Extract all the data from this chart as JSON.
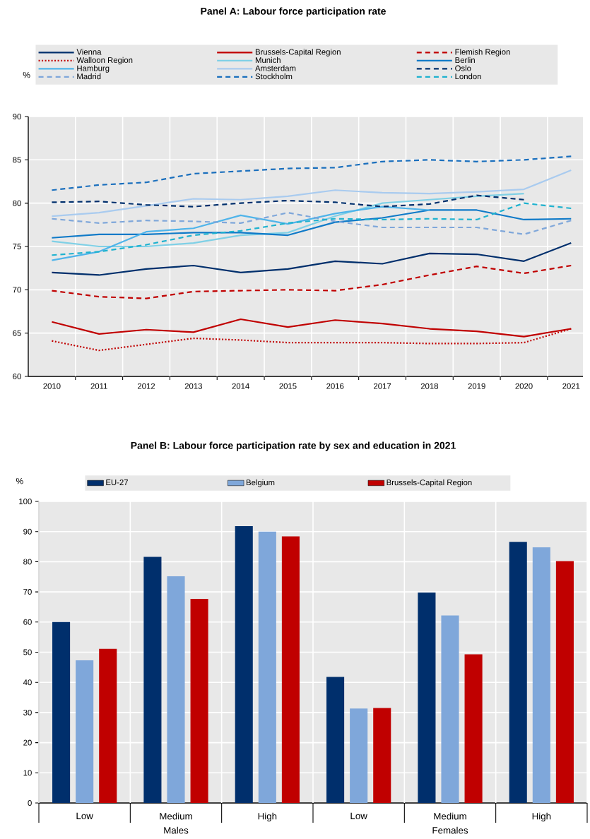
{
  "chart_data": [
    {
      "type": "line",
      "title": "Panel A: Labour force participation rate",
      "ylabel": "%",
      "x": [
        2010,
        2011,
        2012,
        2013,
        2014,
        2015,
        2016,
        2017,
        2018,
        2019,
        2020,
        2021
      ],
      "xlim": [
        2009.5,
        2021.25
      ],
      "xticks": [
        2010,
        2011,
        2012,
        2013,
        2014,
        2015,
        2016,
        2017,
        2018,
        2019,
        2020,
        2021
      ],
      "ylim": [
        60,
        90
      ],
      "yticks": [
        60,
        65,
        70,
        75,
        80,
        85,
        90
      ],
      "grid": true,
      "legend": "top",
      "series": [
        {
          "name": "Vienna",
          "color": "#002f6c",
          "line_style": "solid",
          "values": [
            72.0,
            71.7,
            72.4,
            72.8,
            72.0,
            72.4,
            73.3,
            73.0,
            74.2,
            74.1,
            73.3,
            75.4
          ]
        },
        {
          "name": "Brussels-Capital Region",
          "color": "#c00000",
          "line_style": "solid",
          "values": [
            66.3,
            64.9,
            65.4,
            65.1,
            66.6,
            65.7,
            66.5,
            66.1,
            65.5,
            65.2,
            64.6,
            65.5
          ]
        },
        {
          "name": "Flemish Region",
          "color": "#c00000",
          "line_style": "dashed",
          "values": [
            69.9,
            69.2,
            69.0,
            69.8,
            69.9,
            70.0,
            69.9,
            70.6,
            71.7,
            72.7,
            71.9,
            72.8
          ]
        },
        {
          "name": "Walloon Region",
          "color": "#c00000",
          "line_style": "dotted",
          "values": [
            64.1,
            63.0,
            63.7,
            64.4,
            64.2,
            63.9,
            63.9,
            63.9,
            63.8,
            63.8,
            63.9,
            65.5
          ]
        },
        {
          "name": "Munich",
          "color": "#7fd0e6",
          "line_style": "solid",
          "values": [
            75.6,
            75.0,
            75.0,
            75.4,
            76.3,
            76.6,
            78.5,
            80.0,
            80.4,
            80.8,
            81.1,
            null
          ]
        },
        {
          "name": "Berlin",
          "color": "#0f7ac8",
          "line_style": "solid",
          "values": [
            76.0,
            76.4,
            76.4,
            76.6,
            76.6,
            76.3,
            77.8,
            78.3,
            79.2,
            79.2,
            78.1,
            78.2
          ]
        },
        {
          "name": "Hamburg",
          "color": "#4fb4ea",
          "line_style": "solid",
          "values": [
            73.4,
            74.4,
            76.7,
            77.1,
            78.6,
            77.6,
            78.8,
            79.6,
            79.2,
            null,
            null,
            null
          ]
        },
        {
          "name": "Amsterdam",
          "color": "#a9cbef",
          "line_style": "solid",
          "values": [
            78.5,
            78.9,
            79.7,
            80.5,
            80.4,
            80.8,
            81.5,
            81.2,
            81.1,
            81.3,
            81.6,
            83.8
          ]
        },
        {
          "name": "Oslo",
          "color": "#002f6c",
          "line_style": "dashed",
          "values": [
            80.1,
            80.2,
            79.8,
            79.6,
            80.0,
            80.3,
            80.1,
            79.6,
            79.9,
            80.9,
            80.4,
            null
          ]
        },
        {
          "name": "Madrid",
          "color": "#7fa7da",
          "line_style": "dashed",
          "values": [
            78.2,
            77.7,
            78.0,
            77.9,
            77.7,
            78.9,
            77.9,
            77.2,
            77.2,
            77.2,
            76.4,
            78.0
          ]
        },
        {
          "name": "Stockholm",
          "color": "#1a6fbd",
          "line_style": "dashed",
          "values": [
            81.5,
            82.1,
            82.4,
            83.4,
            83.7,
            84.0,
            84.1,
            84.8,
            85.0,
            84.8,
            85.0,
            85.4
          ]
        },
        {
          "name": "London",
          "color": "#1fb2cf",
          "line_style": "dashed",
          "values": [
            74.0,
            74.4,
            75.2,
            76.3,
            76.8,
            77.7,
            78.2,
            78.1,
            78.2,
            78.1,
            80.0,
            79.4
          ]
        }
      ]
    },
    {
      "type": "bar",
      "title": "Panel B: Labour force participation rate by sex and education in 2021",
      "ylabel": "%",
      "categories": [
        "Low",
        "Medium",
        "High",
        "Low",
        "Medium",
        "High"
      ],
      "annotations": [
        "Males",
        "Females"
      ],
      "ylim": [
        0,
        100
      ],
      "yticks": [
        0,
        10,
        20,
        30,
        40,
        50,
        60,
        70,
        80,
        90,
        100
      ],
      "grid": true,
      "legend": "top",
      "series": [
        {
          "name": "EU-27",
          "color": "#002f6c",
          "values": [
            60.0,
            81.6,
            91.8,
            41.8,
            69.8,
            86.6
          ]
        },
        {
          "name": "Belgium",
          "color": "#7fa7da",
          "values": [
            47.3,
            75.2,
            90.0,
            31.3,
            62.2,
            84.8
          ]
        },
        {
          "name": "Brussels-Capital Region",
          "color": "#c00000",
          "values": [
            51.1,
            67.7,
            88.4,
            31.5,
            49.3,
            80.2
          ]
        }
      ]
    }
  ]
}
